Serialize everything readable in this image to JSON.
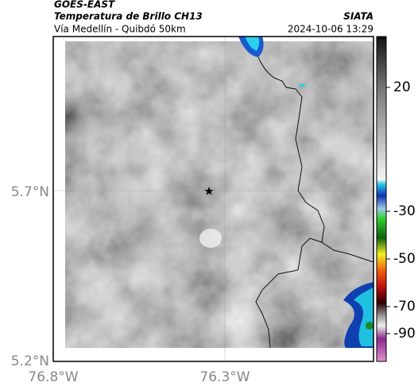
{
  "header": {
    "source": "GOES-EAST",
    "product": "Temperatura de Brillo CH13",
    "region": "Vía Medellín - Quibdó 50km",
    "agency": "SIATA",
    "timestamp": "2024-10-06 13:29"
  },
  "map": {
    "lat_ticks": [
      "5.7°N",
      "5.2°N"
    ],
    "lon_ticks": [
      "76.8°W",
      "76.3°W"
    ]
  },
  "colorbar": {
    "ticks": [
      20,
      -30,
      -50,
      -70,
      -90
    ]
  }
}
